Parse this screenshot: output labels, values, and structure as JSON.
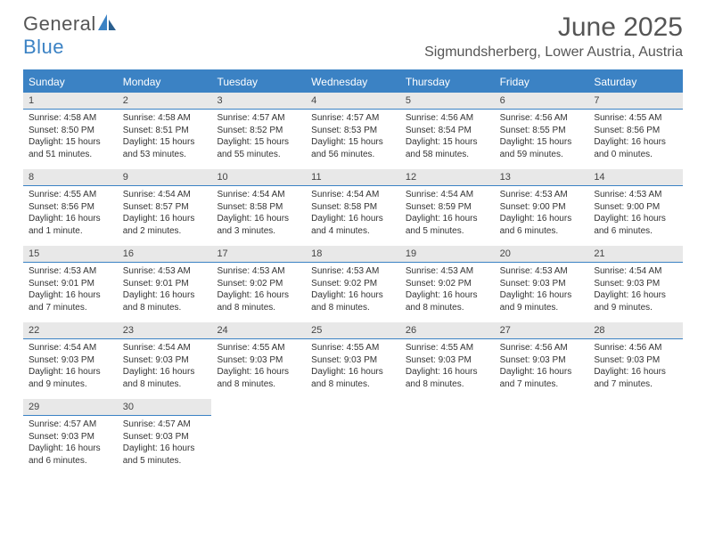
{
  "brand": {
    "general": "General",
    "blue": "Blue"
  },
  "title": "June 2025",
  "location": "Sigmundsherberg, Lower Austria, Austria",
  "colors": {
    "accent": "#3b82c4",
    "header_bg": "#e8e8e8",
    "text": "#333333",
    "title_text": "#555555",
    "white": "#ffffff"
  },
  "dayNames": [
    "Sunday",
    "Monday",
    "Tuesday",
    "Wednesday",
    "Thursday",
    "Friday",
    "Saturday"
  ],
  "weeks": [
    [
      {
        "n": "1",
        "sunrise": "4:58 AM",
        "sunset": "8:50 PM",
        "daylight": "15 hours and 51 minutes."
      },
      {
        "n": "2",
        "sunrise": "4:58 AM",
        "sunset": "8:51 PM",
        "daylight": "15 hours and 53 minutes."
      },
      {
        "n": "3",
        "sunrise": "4:57 AM",
        "sunset": "8:52 PM",
        "daylight": "15 hours and 55 minutes."
      },
      {
        "n": "4",
        "sunrise": "4:57 AM",
        "sunset": "8:53 PM",
        "daylight": "15 hours and 56 minutes."
      },
      {
        "n": "5",
        "sunrise": "4:56 AM",
        "sunset": "8:54 PM",
        "daylight": "15 hours and 58 minutes."
      },
      {
        "n": "6",
        "sunrise": "4:56 AM",
        "sunset": "8:55 PM",
        "daylight": "15 hours and 59 minutes."
      },
      {
        "n": "7",
        "sunrise": "4:55 AM",
        "sunset": "8:56 PM",
        "daylight": "16 hours and 0 minutes."
      }
    ],
    [
      {
        "n": "8",
        "sunrise": "4:55 AM",
        "sunset": "8:56 PM",
        "daylight": "16 hours and 1 minute."
      },
      {
        "n": "9",
        "sunrise": "4:54 AM",
        "sunset": "8:57 PM",
        "daylight": "16 hours and 2 minutes."
      },
      {
        "n": "10",
        "sunrise": "4:54 AM",
        "sunset": "8:58 PM",
        "daylight": "16 hours and 3 minutes."
      },
      {
        "n": "11",
        "sunrise": "4:54 AM",
        "sunset": "8:58 PM",
        "daylight": "16 hours and 4 minutes."
      },
      {
        "n": "12",
        "sunrise": "4:54 AM",
        "sunset": "8:59 PM",
        "daylight": "16 hours and 5 minutes."
      },
      {
        "n": "13",
        "sunrise": "4:53 AM",
        "sunset": "9:00 PM",
        "daylight": "16 hours and 6 minutes."
      },
      {
        "n": "14",
        "sunrise": "4:53 AM",
        "sunset": "9:00 PM",
        "daylight": "16 hours and 6 minutes."
      }
    ],
    [
      {
        "n": "15",
        "sunrise": "4:53 AM",
        "sunset": "9:01 PM",
        "daylight": "16 hours and 7 minutes."
      },
      {
        "n": "16",
        "sunrise": "4:53 AM",
        "sunset": "9:01 PM",
        "daylight": "16 hours and 8 minutes."
      },
      {
        "n": "17",
        "sunrise": "4:53 AM",
        "sunset": "9:02 PM",
        "daylight": "16 hours and 8 minutes."
      },
      {
        "n": "18",
        "sunrise": "4:53 AM",
        "sunset": "9:02 PM",
        "daylight": "16 hours and 8 minutes."
      },
      {
        "n": "19",
        "sunrise": "4:53 AM",
        "sunset": "9:02 PM",
        "daylight": "16 hours and 8 minutes."
      },
      {
        "n": "20",
        "sunrise": "4:53 AM",
        "sunset": "9:03 PM",
        "daylight": "16 hours and 9 minutes."
      },
      {
        "n": "21",
        "sunrise": "4:54 AM",
        "sunset": "9:03 PM",
        "daylight": "16 hours and 9 minutes."
      }
    ],
    [
      {
        "n": "22",
        "sunrise": "4:54 AM",
        "sunset": "9:03 PM",
        "daylight": "16 hours and 9 minutes."
      },
      {
        "n": "23",
        "sunrise": "4:54 AM",
        "sunset": "9:03 PM",
        "daylight": "16 hours and 8 minutes."
      },
      {
        "n": "24",
        "sunrise": "4:55 AM",
        "sunset": "9:03 PM",
        "daylight": "16 hours and 8 minutes."
      },
      {
        "n": "25",
        "sunrise": "4:55 AM",
        "sunset": "9:03 PM",
        "daylight": "16 hours and 8 minutes."
      },
      {
        "n": "26",
        "sunrise": "4:55 AM",
        "sunset": "9:03 PM",
        "daylight": "16 hours and 8 minutes."
      },
      {
        "n": "27",
        "sunrise": "4:56 AM",
        "sunset": "9:03 PM",
        "daylight": "16 hours and 7 minutes."
      },
      {
        "n": "28",
        "sunrise": "4:56 AM",
        "sunset": "9:03 PM",
        "daylight": "16 hours and 7 minutes."
      }
    ],
    [
      {
        "n": "29",
        "sunrise": "4:57 AM",
        "sunset": "9:03 PM",
        "daylight": "16 hours and 6 minutes."
      },
      {
        "n": "30",
        "sunrise": "4:57 AM",
        "sunset": "9:03 PM",
        "daylight": "16 hours and 5 minutes."
      },
      null,
      null,
      null,
      null,
      null
    ]
  ],
  "labels": {
    "sunrise": "Sunrise: ",
    "sunset": "Sunset: ",
    "daylight": "Daylight: "
  }
}
